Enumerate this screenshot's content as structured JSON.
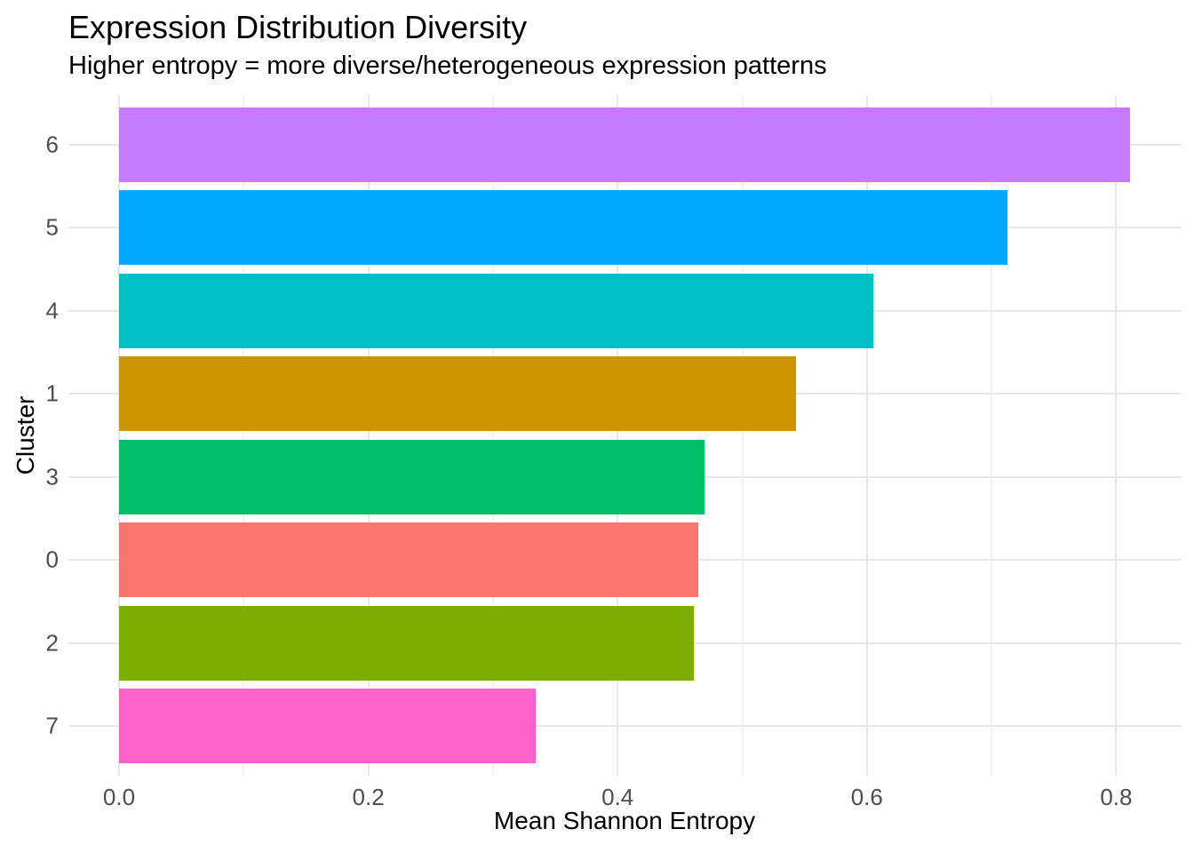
{
  "title": "Expression Distribution Diversity",
  "subtitle": "Higher entropy = more diverse/heterogeneous expression patterns",
  "chart_data": {
    "type": "bar",
    "orientation": "horizontal",
    "title": "Expression Distribution Diversity",
    "subtitle": "Higher entropy = more diverse/heterogeneous expression patterns",
    "xlabel": "Mean Shannon Entropy",
    "ylabel": "Cluster",
    "categories": [
      "6",
      "5",
      "4",
      "1",
      "3",
      "0",
      "2",
      "7"
    ],
    "series": [
      {
        "name": "Mean Shannon Entropy",
        "values": [
          0.811,
          0.713,
          0.605,
          0.543,
          0.47,
          0.465,
          0.461,
          0.334
        ]
      }
    ],
    "bar_colors": [
      "#C77CFF",
      "#00A9FF",
      "#00BFC4",
      "#CD9600",
      "#00BE67",
      "#F8766D",
      "#7CAE00",
      "#FF61CC"
    ],
    "xlim": [
      0,
      0.85
    ],
    "x_major_ticks": [
      0.0,
      0.2,
      0.4,
      0.6,
      0.8
    ],
    "x_tick_labels": [
      "0.0",
      "0.2",
      "0.4",
      "0.6",
      "0.8"
    ],
    "x_minor_ticks": [
      0.1,
      0.3,
      0.5,
      0.7
    ],
    "grid": "major and minor vertical gridlines, major horizontal gridlines at category centers",
    "legend": "none",
    "sort_order": "descending by value, top to bottom"
  },
  "colors": {
    "background": "#FFFFFF",
    "grid_major": "#E8E8E8",
    "grid_minor": "#F2F2F2",
    "tick_label_color": "#4D4D4D",
    "text_color": "#000000"
  }
}
